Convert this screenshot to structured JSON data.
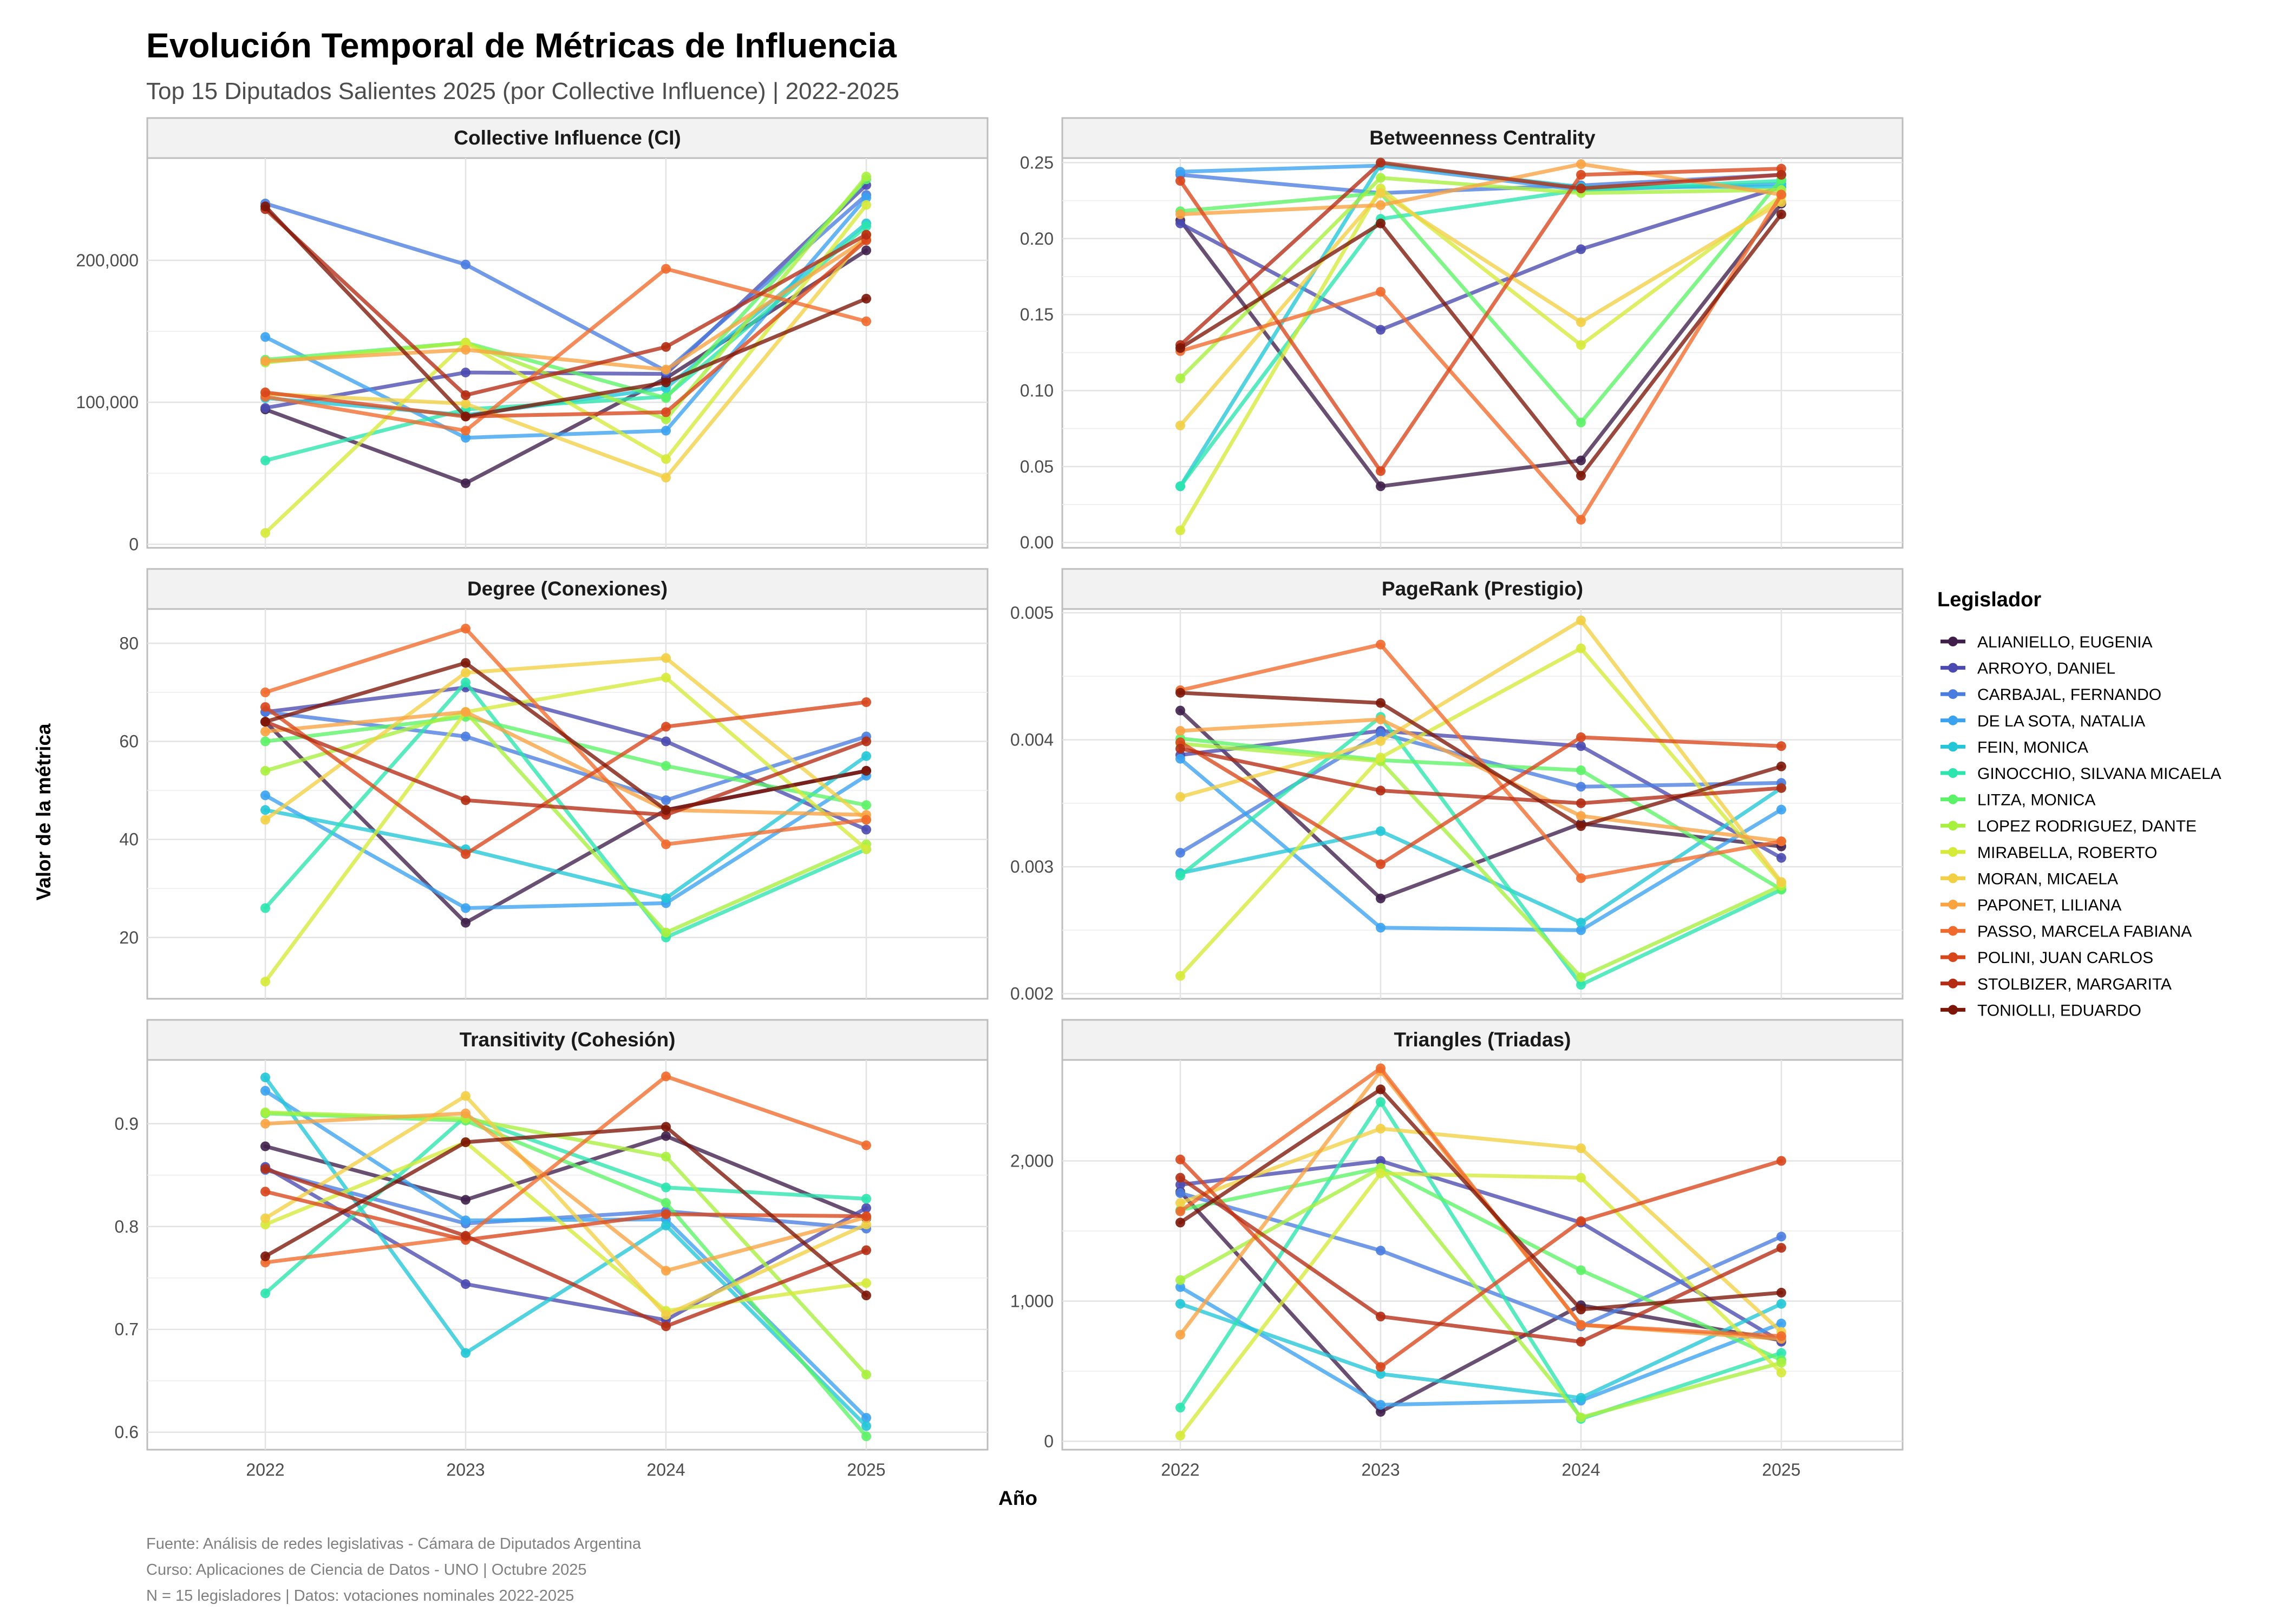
{
  "chart_data": {
    "type": "line",
    "title": "Evolución Temporal de Métricas de Influencia",
    "subtitle": "Top 15 Diputados Salientes 2025 (por Collective Influence) | 2022-2025",
    "xlabel": "Año",
    "ylabel": "Valor de la métrica",
    "x": [
      "2022",
      "2023",
      "2024",
      "2025"
    ],
    "legend": {
      "title": "Legislador",
      "position": "right"
    },
    "grid": true,
    "series_names": [
      "ALIANIELLO, EUGENIA",
      "ARROYO, DANIEL",
      "CARBAJAL, FERNANDO",
      "DE LA SOTA, NATALIA",
      "FEIN, MONICA",
      "GINOCCHIO, SILVANA MICAELA",
      "LITZA, MONICA",
      "LOPEZ RODRIGUEZ, DANTE",
      "MIRABELLA, ROBERTO",
      "MORAN, MICAELA",
      "PAPONET, LILIANA",
      "PASSO, MARCELA FABIANA",
      "POLINI, JUAN CARLOS",
      "STOLBIZER, MARGARITA",
      "TONIOLLI, EDUARDO"
    ],
    "series_colors": [
      "#3f1f4a",
      "#4a4ab0",
      "#4a7de0",
      "#3aa2ef",
      "#22c6d6",
      "#2ce4ae",
      "#5cf267",
      "#a8f03e",
      "#d6ea3a",
      "#f2cf45",
      "#f9a341",
      "#ef6a2c",
      "#d8461c",
      "#b32c13",
      "#7c1608"
    ],
    "panels": [
      {
        "title": "Collective Influence (CI)",
        "ylim": [
          -2500,
          272000
        ],
        "yticks": [
          0,
          100000,
          200000
        ],
        "ytick_labels": [
          "0",
          "100,000",
          "200,000"
        ],
        "series": [
          [
            95000,
            43000,
            117000,
            207000
          ],
          [
            96000,
            121000,
            120000,
            253000
          ],
          [
            240000,
            197000,
            122000,
            246000
          ],
          [
            146000,
            75000,
            80000,
            244000
          ],
          [
            103000,
            91000,
            110000,
            226000
          ],
          [
            59000,
            95000,
            104000,
            224000
          ],
          [
            130000,
            142000,
            103000,
            257000
          ],
          [
            128000,
            142000,
            88000,
            259000
          ],
          [
            8000,
            142000,
            60000,
            239000
          ],
          [
            106000,
            99000,
            47000,
            218000
          ],
          [
            129000,
            137000,
            123000,
            215000
          ],
          [
            104000,
            80000,
            194000,
            157000
          ],
          [
            107000,
            90000,
            93000,
            214000
          ],
          [
            236000,
            105000,
            139000,
            218000
          ],
          [
            238000,
            90000,
            114000,
            173000
          ]
        ]
      },
      {
        "title": "Betweenness Centrality",
        "ylim": [
          -0.0035,
          0.253
        ],
        "yticks": [
          0,
          0.05,
          0.1,
          0.15,
          0.2,
          0.25
        ],
        "ytick_labels": [
          "0.00",
          "0.05",
          "0.10",
          "0.15",
          "0.20",
          "0.25"
        ],
        "series": [
          [
            0.212,
            0.037,
            0.054,
            0.223
          ],
          [
            0.21,
            0.14,
            0.193,
            0.234
          ],
          [
            0.242,
            0.23,
            0.235,
            0.242
          ],
          [
            0.244,
            0.248,
            0.232,
            0.236
          ],
          [
            0.037,
            0.249,
            0.234,
            0.234
          ],
          [
            0.037,
            0.213,
            0.232,
            0.238
          ],
          [
            0.218,
            0.23,
            0.079,
            0.239
          ],
          [
            0.108,
            0.24,
            0.23,
            0.232
          ],
          [
            0.008,
            0.233,
            0.13,
            0.228
          ],
          [
            0.077,
            0.23,
            0.145,
            0.224
          ],
          [
            0.216,
            0.222,
            0.249,
            0.229
          ],
          [
            0.126,
            0.165,
            0.015,
            0.229
          ],
          [
            0.238,
            0.047,
            0.242,
            0.246
          ],
          [
            0.13,
            0.25,
            0.233,
            0.242
          ],
          [
            0.128,
            0.21,
            0.044,
            0.216
          ]
        ]
      },
      {
        "title": "Degree (Conexiones)",
        "ylim": [
          7.5,
          87
        ],
        "yticks": [
          20,
          40,
          60,
          80
        ],
        "ytick_labels": [
          "20",
          "40",
          "60",
          "80"
        ],
        "series": [
          [
            64,
            23,
            46,
            54
          ],
          [
            66,
            71,
            60,
            42
          ],
          [
            66,
            61,
            48,
            61
          ],
          [
            49,
            26,
            27,
            53
          ],
          [
            46,
            38,
            28,
            57
          ],
          [
            26,
            72,
            20,
            38
          ],
          [
            60,
            65,
            55,
            47
          ],
          [
            54,
            66,
            21,
            39
          ],
          [
            11,
            66,
            73,
            38
          ],
          [
            44,
            74,
            77,
            44
          ],
          [
            62,
            66,
            46,
            45
          ],
          [
            70,
            83,
            39,
            44
          ],
          [
            67,
            37,
            63,
            68
          ],
          [
            64,
            48,
            45,
            60
          ],
          [
            64,
            76,
            46,
            54
          ]
        ]
      },
      {
        "title": "PageRank (Prestigio)",
        "ylim": [
          0.00196,
          0.00503
        ],
        "yticks": [
          0.002,
          0.003,
          0.004,
          0.005
        ],
        "ytick_labels": [
          "0.002",
          "0.003",
          "0.004",
          "0.005"
        ],
        "series": [
          [
            0.00423,
            0.00275,
            0.00334,
            0.00316
          ],
          [
            0.00388,
            0.00407,
            0.00395,
            0.00307
          ],
          [
            0.00311,
            0.00405,
            0.00363,
            0.00366
          ],
          [
            0.00385,
            0.00252,
            0.0025,
            0.00345
          ],
          [
            0.00295,
            0.00328,
            0.00256,
            0.00362
          ],
          [
            0.00293,
            0.00418,
            0.00207,
            0.00282
          ],
          [
            0.00401,
            0.00384,
            0.00376,
            0.00282
          ],
          [
            0.00397,
            0.00383,
            0.00213,
            0.00285
          ],
          [
            0.00214,
            0.00386,
            0.00472,
            0.00287
          ],
          [
            0.00355,
            0.00399,
            0.00494,
            0.00288
          ],
          [
            0.00407,
            0.00416,
            0.0034,
            0.0032
          ],
          [
            0.00439,
            0.00475,
            0.00291,
            0.0032
          ],
          [
            0.00398,
            0.00302,
            0.00402,
            0.00395
          ],
          [
            0.00393,
            0.0036,
            0.0035,
            0.00362
          ],
          [
            0.00437,
            0.00429,
            0.00332,
            0.00379
          ]
        ]
      },
      {
        "title": "Transitivity (Cohesión)",
        "ylim": [
          0.583,
          0.962
        ],
        "yticks": [
          0.6,
          0.7,
          0.8,
          0.9
        ],
        "ytick_labels": [
          "0.6",
          "0.7",
          "0.8",
          "0.9"
        ],
        "series": [
          [
            0.878,
            0.826,
            0.888,
            0.808
          ],
          [
            0.858,
            0.744,
            0.709,
            0.818
          ],
          [
            0.855,
            0.803,
            0.815,
            0.798
          ],
          [
            0.932,
            0.806,
            0.807,
            0.614
          ],
          [
            0.945,
            0.677,
            0.801,
            0.606
          ],
          [
            0.735,
            0.907,
            0.838,
            0.827
          ],
          [
            0.91,
            0.903,
            0.823,
            0.596
          ],
          [
            0.911,
            0.905,
            0.868,
            0.656
          ],
          [
            0.802,
            0.882,
            0.718,
            0.745
          ],
          [
            0.808,
            0.927,
            0.714,
            0.802
          ],
          [
            0.9,
            0.91,
            0.757,
            0.809
          ],
          [
            0.765,
            0.79,
            0.946,
            0.879
          ],
          [
            0.834,
            0.787,
            0.812,
            0.81
          ],
          [
            0.856,
            0.791,
            0.703,
            0.777
          ],
          [
            0.771,
            0.882,
            0.897,
            0.733
          ]
        ]
      },
      {
        "title": "Triangles (Triadas)",
        "ylim": [
          -60,
          2720
        ],
        "yticks": [
          0,
          1000,
          2000
        ],
        "ytick_labels": [
          "0",
          "1,000",
          "2,000"
        ],
        "series": [
          [
            1780,
            210,
            970,
            720
          ],
          [
            1830,
            2000,
            1560,
            710
          ],
          [
            1770,
            1360,
            820,
            1460
          ],
          [
            1100,
            260,
            290,
            840
          ],
          [
            980,
            480,
            310,
            980
          ],
          [
            240,
            2420,
            160,
            630
          ],
          [
            1650,
            1950,
            1220,
            580
          ],
          [
            1150,
            1950,
            170,
            560
          ],
          [
            40,
            1910,
            1880,
            490
          ],
          [
            1700,
            2230,
            2090,
            780
          ],
          [
            760,
            2640,
            830,
            730
          ],
          [
            1640,
            2660,
            830,
            750
          ],
          [
            2010,
            530,
            1570,
            2000
          ],
          [
            1880,
            890,
            710,
            1380
          ],
          [
            1560,
            2510,
            940,
            1060
          ]
        ]
      }
    ],
    "caption": [
      "Fuente: Análisis de redes legislativas - Cámara de Diputados Argentina",
      "Curso: Aplicaciones de Ciencia de Datos - UNO | Octubre 2025",
      "N = 15 legisladores | Datos: votaciones nominales 2022-2025"
    ]
  }
}
